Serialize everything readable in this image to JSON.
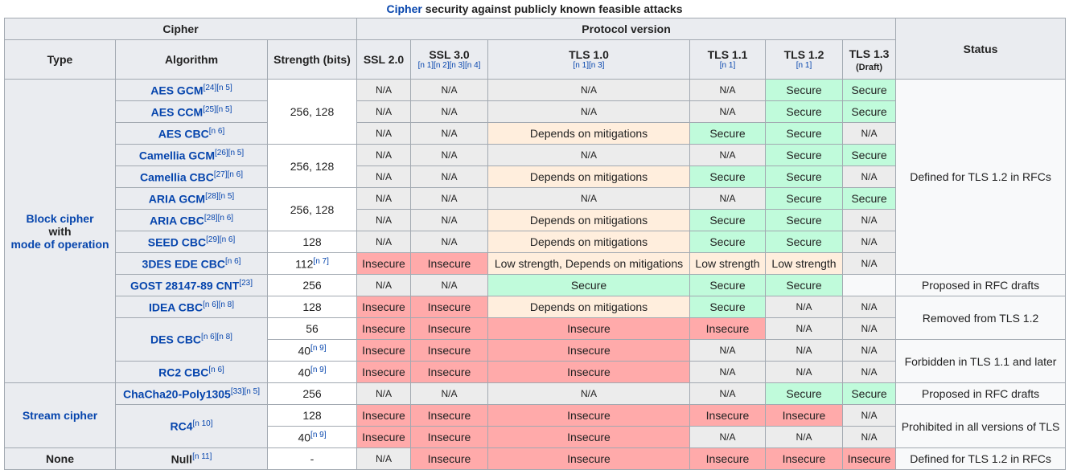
{
  "caption": {
    "link": "Cipher",
    "rest": " security against publicly known feasible attacks"
  },
  "headers": {
    "cipher": "Cipher",
    "protocol_version": "Protocol version",
    "status": "Status",
    "type": "Type",
    "algorithm": "Algorithm",
    "strength": "Strength (bits)",
    "ssl20": "SSL 2.0",
    "ssl30": "SSL 3.0",
    "ssl30_refs": "[n 1][n 2][n 3][n 4]",
    "tls10": "TLS 1.0",
    "tls10_refs": "[n 1][n 3]",
    "tls11": "TLS 1.1",
    "tls11_refs": "[n 1]",
    "tls12": "TLS 1.2",
    "tls12_refs": "[n 1]",
    "tls13": "TLS 1.3",
    "tls13_note": "(Draft)"
  },
  "types": {
    "block_line1": "Block cipher",
    "block_line2": "with",
    "block_line3": "mode of operation",
    "stream": "Stream cipher",
    "none": "None"
  },
  "algorithms": {
    "aes_gcm": "AES GCM",
    "aes_gcm_ref": "[24][n 5]",
    "aes_ccm": "AES CCM",
    "aes_ccm_ref": "[25][n 5]",
    "aes_cbc": "AES CBC",
    "aes_cbc_ref": "[n 6]",
    "cam_gcm": "Camellia GCM",
    "cam_gcm_ref": "[26][n 5]",
    "cam_cbc": "Camellia CBC",
    "cam_cbc_ref": "[27][n 6]",
    "aria_gcm": "ARIA GCM",
    "aria_gcm_ref": "[28][n 5]",
    "aria_cbc": "ARIA CBC",
    "aria_cbc_ref": "[28][n 6]",
    "seed_cbc": "SEED CBC",
    "seed_cbc_ref": "[29][n 6]",
    "des3": "3DES EDE CBC",
    "des3_ref": "[n 6]",
    "gost": "GOST 28147-89 CNT",
    "gost_ref": "[23]",
    "idea": "IDEA CBC",
    "idea_ref": "[n 6][n 8]",
    "des": "DES CBC",
    "des_ref": "[n 6][n 8]",
    "rc2": "RC2 CBC",
    "rc2_ref": "[n 6]",
    "chacha": "ChaCha20-Poly1305",
    "chacha_ref": "[33][n 5]",
    "rc4": "RC4",
    "rc4_ref": "[n 10]",
    "null": "Null",
    "null_ref": "[n 11]"
  },
  "strengths": {
    "aes": "256, 128",
    "camellia": "256, 128",
    "aria": "256, 128",
    "seed": "128",
    "des3": "112",
    "des3_ref": "[n 7]",
    "gost": "256",
    "idea": "128",
    "des56": "56",
    "des40": "40",
    "des40_ref": "[n 9]",
    "rc2": "40",
    "rc2_ref": "[n 9]",
    "chacha": "256",
    "rc4_128": "128",
    "rc4_40": "40",
    "rc4_40_ref": "[n 9]",
    "null": "-"
  },
  "values": {
    "na": "N/A",
    "secure": "Secure",
    "insecure": "Insecure",
    "mitigations": "Depends on mitigations",
    "low_mitig": "Low strength, Depends on mitigations",
    "low": "Low strength"
  },
  "statuses": {
    "defined12": "Defined for TLS 1.2 in RFCs",
    "proposed": "Proposed in RFC drafts",
    "removed12": "Removed from TLS 1.2",
    "forbidden": "Forbidden in TLS 1.1 and later",
    "proposed2": "Proposed in RFC drafts",
    "prohibited": "Prohibited in all versions of TLS",
    "defined12_null": "Defined for TLS 1.2 in RFCs"
  },
  "colors": {
    "secure": "#c0fbdb",
    "insecure": "#ffaaaa",
    "mitigations": "#ffeedd",
    "na": "#ececec",
    "header": "#eaecf0",
    "link": "#0645ad"
  }
}
